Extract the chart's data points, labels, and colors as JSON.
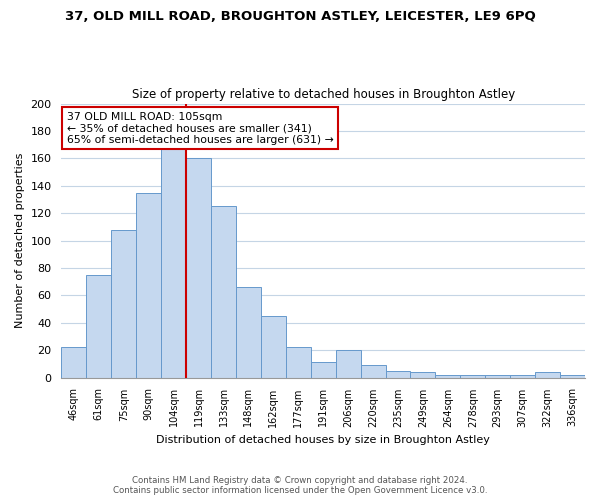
{
  "title1": "37, OLD MILL ROAD, BROUGHTON ASTLEY, LEICESTER, LE9 6PQ",
  "title2": "Size of property relative to detached houses in Broughton Astley",
  "xlabel": "Distribution of detached houses by size in Broughton Astley",
  "ylabel": "Number of detached properties",
  "bar_labels": [
    "46sqm",
    "61sqm",
    "75sqm",
    "90sqm",
    "104sqm",
    "119sqm",
    "133sqm",
    "148sqm",
    "162sqm",
    "177sqm",
    "191sqm",
    "206sqm",
    "220sqm",
    "235sqm",
    "249sqm",
    "264sqm",
    "278sqm",
    "293sqm",
    "307sqm",
    "322sqm",
    "336sqm"
  ],
  "bar_values": [
    22,
    75,
    108,
    135,
    168,
    160,
    125,
    66,
    45,
    22,
    11,
    20,
    9,
    5,
    4,
    2,
    2,
    2,
    2,
    4,
    2
  ],
  "bar_color": "#c5d8ef",
  "bar_edge_color": "#6699cc",
  "vline_x_index": 4,
  "vline_color": "#cc0000",
  "annotation_text": "37 OLD MILL ROAD: 105sqm\n← 35% of detached houses are smaller (341)\n65% of semi-detached houses are larger (631) →",
  "annotation_box_color": "#ffffff",
  "annotation_box_edge": "#cc0000",
  "ylim": [
    0,
    200
  ],
  "yticks": [
    0,
    20,
    40,
    60,
    80,
    100,
    120,
    140,
    160,
    180,
    200
  ],
  "footer1": "Contains HM Land Registry data © Crown copyright and database right 2024.",
  "footer2": "Contains public sector information licensed under the Open Government Licence v3.0.",
  "bg_color": "#ffffff",
  "grid_color": "#c5d5e5"
}
